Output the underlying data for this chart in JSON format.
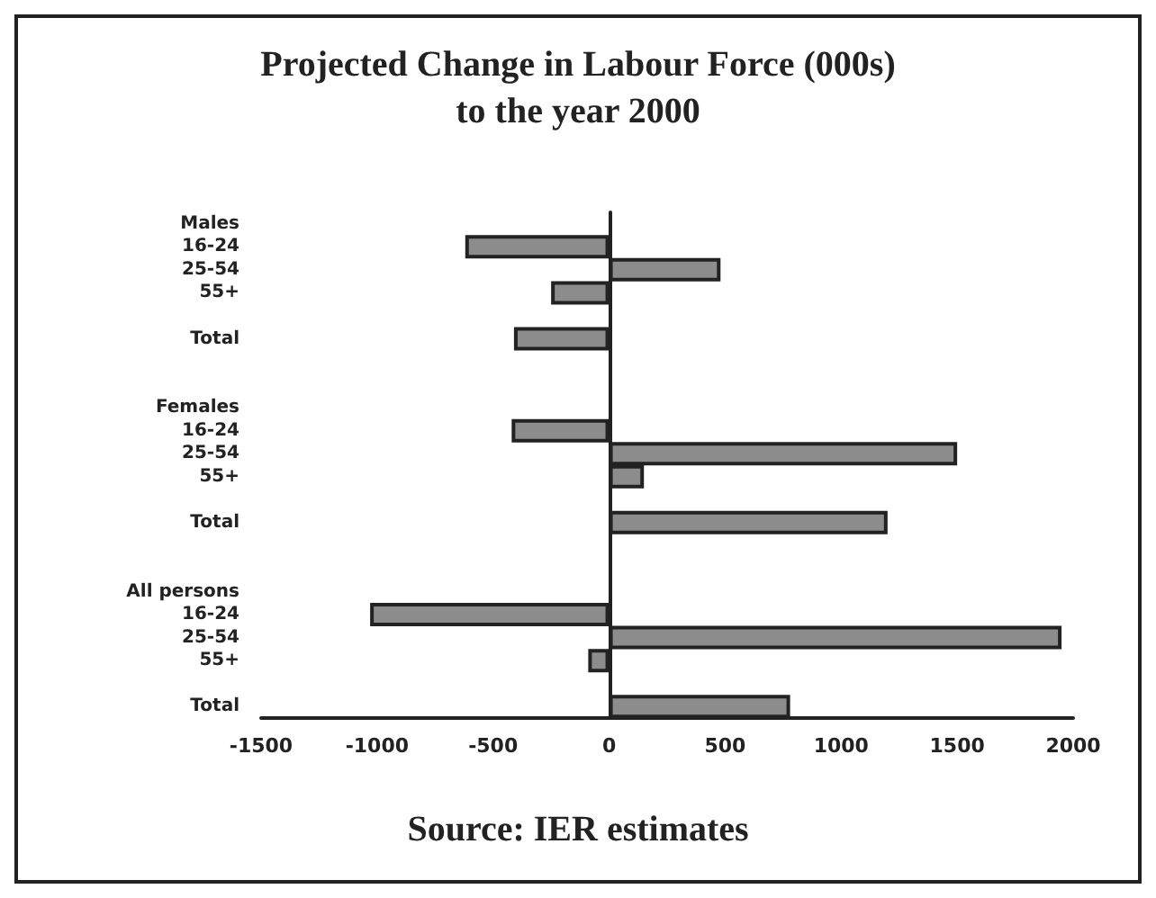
{
  "chart_data": {
    "type": "bar",
    "orientation": "horizontal",
    "title": "Projected Change in Labour Force (000s)\nto the year 2000",
    "categories": [
      "Males",
      "16-24",
      "25-54",
      "55+",
      null,
      "Total",
      null,
      null,
      "Females",
      "16-24",
      "25-54",
      "55+",
      null,
      "Total",
      null,
      null,
      "All persons",
      "16-24",
      "25-54",
      "55+",
      null,
      "Total"
    ],
    "values": [
      null,
      -620,
      480,
      -250,
      null,
      -410,
      null,
      null,
      null,
      -420,
      1500,
      150,
      null,
      1200,
      null,
      null,
      null,
      -1030,
      1950,
      -90,
      null,
      780
    ],
    "color": "#8c8c8c",
    "xlim": [
      -1500,
      2000
    ],
    "xticks": [
      -1500,
      -1000,
      -500,
      0,
      500,
      1000,
      1500,
      2000
    ],
    "annotations": [
      "Source: IER estimates"
    ]
  }
}
